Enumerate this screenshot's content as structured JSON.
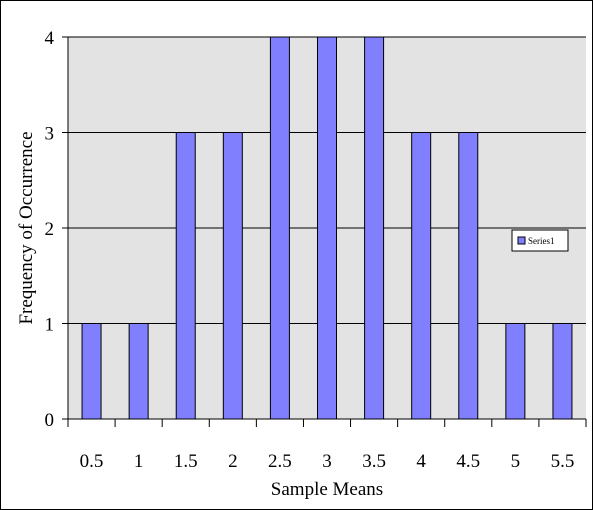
{
  "chart_data": {
    "type": "bar",
    "categories": [
      "0.5",
      "1",
      "1.5",
      "2",
      "2.5",
      "3",
      "3.5",
      "4",
      "4.5",
      "5",
      "5.5"
    ],
    "series": [
      {
        "name": "Series1",
        "values": [
          1,
          1,
          3,
          3,
          4,
          4,
          4,
          3,
          3,
          1,
          1
        ]
      }
    ],
    "xlabel": "Sample Means",
    "ylabel": "Frequency of Occurrence",
    "ylim": [
      0,
      4
    ],
    "yticks": [
      "0",
      "1",
      "2",
      "3",
      "4"
    ],
    "grid": true,
    "legend_position": "right",
    "colors": {
      "bar_fill": "#8080ff",
      "bar_stroke": "#000000",
      "plot_background": "#e3e3e3",
      "grid": "#000000"
    }
  }
}
